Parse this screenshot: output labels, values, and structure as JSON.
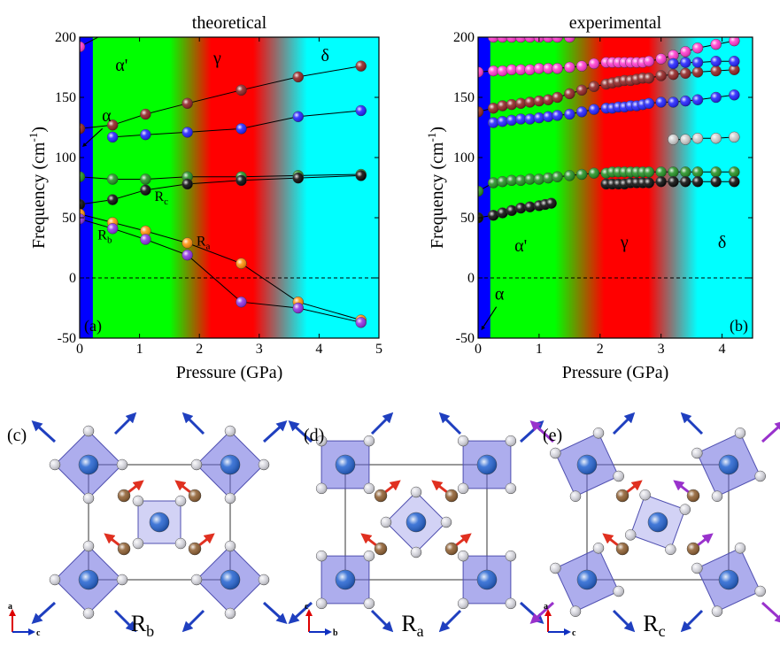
{
  "chart_data": [
    {
      "type": "scatter",
      "panel_label": "(a)",
      "title": "theoretical",
      "xlabel": "Pressure (GPa)",
      "ylabel_main": "Frequency (cm",
      "ylabel_sup": "-1",
      "ylabel_close": ")",
      "xlim": [
        0,
        5
      ],
      "ylim": [
        -50,
        200
      ],
      "xticks": [
        0,
        1,
        2,
        3,
        4,
        5
      ],
      "yticks": [
        -50,
        0,
        50,
        100,
        150,
        200
      ],
      "phase_labels": [
        {
          "text": "α'",
          "x": 0.7,
          "y": 172
        },
        {
          "text": "γ",
          "x": 2.3,
          "y": 178
        },
        {
          "text": "δ",
          "x": 4.1,
          "y": 180
        },
        {
          "text": "α",
          "x": 0.45,
          "y": 130
        }
      ],
      "mode_labels": [
        {
          "text": "R",
          "sub": "c",
          "x": 1.25,
          "y": 64
        },
        {
          "text": "R",
          "sub": "a",
          "x": 1.95,
          "y": 27
        },
        {
          "text": "R",
          "sub": "b",
          "x": 0.3,
          "y": 32
        }
      ],
      "series": [
        {
          "color": "#ff33cc",
          "x": [
            0,
            0.5
          ],
          "y": [
            192,
            205
          ]
        },
        {
          "color": "#8b1a1a",
          "x": [
            0,
            0.55,
            1.1,
            1.8,
            2.7,
            3.65,
            4.7
          ],
          "y": [
            124,
            127,
            136,
            145,
            156,
            167,
            176
          ]
        },
        {
          "color": "#1a1aff",
          "x": [
            0.55,
            1.1,
            1.8,
            2.7,
            3.65,
            4.7
          ],
          "y": [
            117,
            119,
            121,
            124,
            134,
            139
          ]
        },
        {
          "color": "#1a8c1a",
          "x": [
            0,
            0.55,
            1.1,
            1.8,
            2.7,
            3.65,
            4.7
          ],
          "y": [
            84,
            82,
            82,
            84,
            84,
            85,
            86
          ]
        },
        {
          "color": "#000000",
          "x": [
            0,
            0.55,
            1.1,
            1.8,
            2.7,
            3.65,
            4.7
          ],
          "y": [
            61,
            65,
            73,
            78,
            81,
            83,
            85
          ]
        },
        {
          "color": "#ff8c00",
          "x": [
            0,
            0.55,
            1.1,
            1.8,
            2.7,
            3.65,
            4.7
          ],
          "y": [
            53,
            46,
            39,
            29,
            12,
            -20,
            -35
          ]
        },
        {
          "color": "#8a2be2",
          "x": [
            0,
            0.55,
            1.1,
            1.8,
            2.7,
            3.65,
            4.7
          ],
          "y": [
            49,
            41,
            32,
            19,
            -20,
            -25,
            -37
          ]
        }
      ]
    },
    {
      "type": "scatter",
      "panel_label": "(b)",
      "title": "experimental",
      "xlabel": "Pressure (GPa)",
      "ylabel_main": "Frequency (cm",
      "ylabel_sup": "-1",
      "ylabel_close": ")",
      "xlim": [
        0,
        4.5
      ],
      "ylim": [
        -50,
        200
      ],
      "xticks": [
        0,
        1,
        2,
        3,
        4
      ],
      "yticks": [
        -50,
        0,
        50,
        100,
        150,
        200
      ],
      "phase_labels": [
        {
          "text": "α'",
          "x": 0.7,
          "y": 22
        },
        {
          "text": "γ",
          "x": 2.4,
          "y": 25
        },
        {
          "text": "δ",
          "x": 4.0,
          "y": 25
        },
        {
          "text": "α",
          "x": 0.35,
          "y": -18
        }
      ],
      "mode_labels": [],
      "series": [
        {
          "color": "#ff33cc",
          "x": [
            0,
            0.25,
            0.4,
            0.55,
            0.7,
            0.85,
            1.0,
            1.15,
            1.3,
            1.5,
            1.7,
            1.9,
            2.1,
            2.2,
            2.3,
            2.4,
            2.5,
            2.6,
            2.7,
            2.8,
            3.0,
            3.2,
            3.4,
            3.6,
            3.9,
            4.2
          ],
          "y": [
            171,
            172,
            172,
            173,
            173,
            173,
            174,
            174,
            174,
            175,
            176,
            178,
            179,
            179,
            179,
            179,
            179,
            179,
            179,
            180,
            182,
            185,
            188,
            191,
            194,
            197
          ]
        },
        {
          "color": "#8b1a1a",
          "x": [
            0,
            0.25,
            0.4,
            0.55,
            0.7,
            0.85,
            1.0,
            1.15,
            1.3,
            1.5,
            1.7,
            1.9,
            2.1,
            2.2,
            2.3,
            2.4,
            2.5,
            2.6,
            2.7,
            2.8,
            3.0,
            3.2,
            3.4,
            3.6,
            3.9,
            4.2
          ],
          "y": [
            138,
            141,
            143,
            144,
            145,
            146,
            147,
            148,
            150,
            153,
            156,
            159,
            161,
            162,
            163,
            164,
            164,
            165,
            166,
            166,
            168,
            169,
            170,
            171,
            172,
            173
          ]
        },
        {
          "color": "#1a1aff",
          "x": [
            0.25,
            0.4,
            0.55,
            0.7,
            0.85,
            1.0,
            1.15,
            1.3,
            1.5,
            1.7,
            1.9,
            2.1,
            2.2,
            2.3,
            2.4,
            2.5,
            2.6,
            2.7,
            2.8,
            3.0,
            3.2,
            3.4,
            3.6,
            3.9,
            4.2
          ],
          "y": [
            129,
            130,
            131,
            132,
            132,
            133,
            134,
            135,
            136,
            138,
            140,
            141,
            141,
            142,
            142,
            143,
            143,
            144,
            145,
            146,
            146,
            147,
            148,
            150,
            152
          ]
        },
        {
          "color": "#cccccc",
          "x": [
            3.2,
            3.4,
            3.6,
            3.9,
            4.2
          ],
          "y": [
            115,
            115,
            116,
            116,
            117
          ]
        },
        {
          "color": "#1a8c1a",
          "x": [
            0,
            0.25,
            0.4,
            0.55,
            0.7,
            0.85,
            1.0,
            1.15,
            1.3,
            1.5,
            1.7,
            1.9,
            2.1,
            2.2,
            2.3,
            2.4,
            2.5,
            2.6,
            2.7,
            2.8,
            3.0,
            3.2,
            3.4,
            3.6,
            3.9,
            4.2
          ],
          "y": [
            72,
            79,
            80,
            81,
            81,
            82,
            82,
            83,
            84,
            85,
            86,
            87,
            87,
            88,
            88,
            88,
            88,
            88,
            88,
            88,
            88,
            88,
            88,
            88,
            88,
            88
          ]
        },
        {
          "color": "#000000",
          "x": [
            2.1,
            2.2,
            2.3,
            2.4,
            2.5,
            2.6,
            2.7,
            2.8,
            3.0,
            3.2,
            3.4,
            3.6,
            3.9,
            4.2
          ],
          "y": [
            78,
            78,
            78,
            78,
            79,
            79,
            79,
            79,
            80,
            80,
            80,
            80,
            80,
            80
          ]
        },
        {
          "color": "#000000",
          "x": [
            0,
            0.25,
            0.4,
            0.55,
            0.7,
            0.85,
            1.0,
            1.1,
            1.2
          ],
          "y": [
            50,
            52,
            54,
            56,
            58,
            59,
            60,
            61,
            62
          ]
        },
        {
          "color": "#ff33cc",
          "x": [
            0.25,
            0.4,
            0.55,
            0.7,
            0.85,
            1.0,
            1.15,
            1.3,
            1.5
          ],
          "y": [
            200,
            200,
            200,
            200,
            200,
            200,
            200,
            200,
            200
          ]
        },
        {
          "color": "#1a1aff",
          "x": [
            3.2,
            3.4,
            3.6,
            3.9,
            4.2
          ],
          "y": [
            178,
            179,
            179,
            180,
            180
          ]
        }
      ]
    }
  ],
  "structures": [
    {
      "panel_label": "(c)",
      "mode": "R",
      "mode_sub": "b",
      "axis_up": "a",
      "axis_right": "c"
    },
    {
      "panel_label": "(d)",
      "mode": "R",
      "mode_sub": "a",
      "axis_up": "c",
      "axis_right": "b"
    },
    {
      "panel_label": "(e)",
      "mode": "R",
      "mode_sub": "c",
      "axis_up": "a",
      "axis_right": "c"
    }
  ],
  "colors": {
    "alpha_band": "#0000ff",
    "green_phase": "#00ff00",
    "red_phase": "#ff0000",
    "cyan_phase": "#00ffff",
    "octahedron": "#6a6adf",
    "arrow_blue": "#1f3fbf",
    "arrow_red": "#e03020",
    "arrow_purple": "#9932cc"
  }
}
